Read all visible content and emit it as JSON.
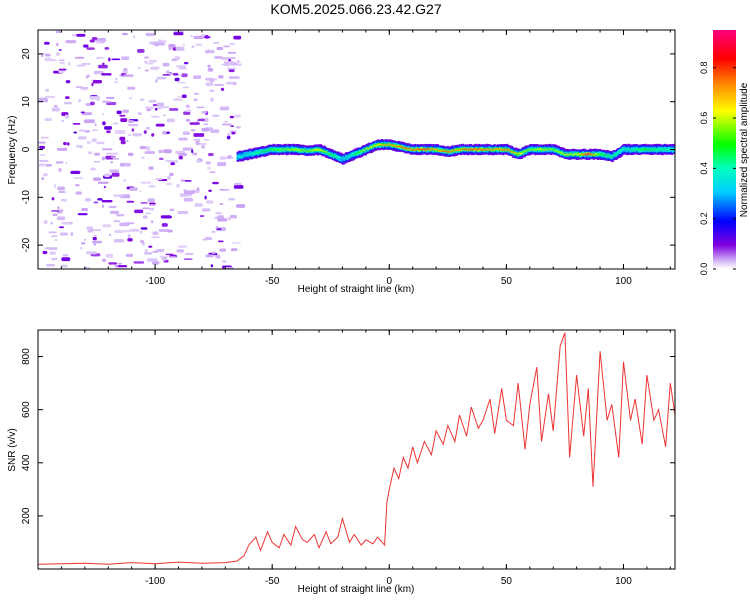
{
  "title": "KOM5.2025.066.23.42.G27",
  "chart_data": [
    {
      "type": "heatmap",
      "xlabel": "Height of straight line (km)",
      "ylabel": "Frequency (Hz)",
      "xlim": [
        -150,
        122
      ],
      "ylim": [
        -25,
        25
      ],
      "xticks": [
        -100,
        -50,
        0,
        50,
        100
      ],
      "yticks": [
        -20,
        -10,
        0,
        10,
        20
      ],
      "colorbar": {
        "label": "Normalized spectral amplitude",
        "range": [
          0,
          0.95
        ],
        "ticks": [
          0.0,
          0.2,
          0.4,
          0.6,
          0.8
        ],
        "colors": [
          "#ffffff",
          "#c9a8f0",
          "#7a00e0",
          "#0000ff",
          "#00e0ff",
          "#00ff40",
          "#ffff00",
          "#ff8000",
          "#ff0000",
          "#ff0080"
        ]
      },
      "noise_region_x": [
        -150,
        -65
      ],
      "signal_trace": {
        "x": [
          -65,
          -60,
          -55,
          -50,
          -45,
          -40,
          -35,
          -30,
          -25,
          -20,
          -15,
          -10,
          -5,
          0,
          5,
          10,
          15,
          20,
          25,
          30,
          35,
          40,
          45,
          50,
          55,
          60,
          65,
          70,
          75,
          80,
          85,
          90,
          95,
          100,
          105,
          110,
          115,
          122
        ],
        "frequency": [
          -1.5,
          -1,
          -0.5,
          0,
          0,
          0,
          -0.3,
          0,
          -1,
          -2,
          -1,
          0,
          1,
          1,
          0.5,
          0,
          0,
          0,
          -0.5,
          0,
          0,
          0,
          0,
          0,
          -1,
          0,
          0,
          0,
          -1,
          -1,
          -1,
          -1,
          -1.5,
          0,
          0,
          0,
          0,
          0
        ],
        "amplitude": [
          0.35,
          0.4,
          0.45,
          0.5,
          0.55,
          0.6,
          0.55,
          0.65,
          0.5,
          0.35,
          0.45,
          0.6,
          0.65,
          0.7,
          0.75,
          0.75,
          0.8,
          0.7,
          0.75,
          0.7,
          0.8,
          0.75,
          0.7,
          0.75,
          0.65,
          0.55,
          0.6,
          0.55,
          0.6,
          0.6,
          0.85,
          0.5,
          0.45,
          0.4,
          0.45,
          0.5,
          0.45,
          0.4
        ]
      }
    },
    {
      "type": "line",
      "xlabel": "Height of straight line (km)",
      "ylabel": "SNR (v/v)",
      "xlim": [
        -150,
        122
      ],
      "ylim": [
        0,
        900
      ],
      "xticks": [
        -100,
        -50,
        0,
        50,
        100
      ],
      "yticks": [
        200,
        400,
        600,
        800
      ],
      "color": "#ee3333",
      "series": [
        {
          "x": [
            -150,
            -140,
            -130,
            -120,
            -110,
            -100,
            -90,
            -80,
            -70,
            -65,
            -62,
            -60,
            -57,
            -55,
            -52,
            -50,
            -47,
            -45,
            -42,
            -40,
            -37,
            -35,
            -32,
            -30,
            -27,
            -25,
            -22,
            -20,
            -17,
            -15,
            -12,
            -10,
            -7,
            -5,
            -3,
            -2,
            -1,
            0,
            2,
            4,
            6,
            8,
            10,
            12,
            15,
            18,
            20,
            23,
            25,
            28,
            30,
            33,
            35,
            38,
            40,
            43,
            45,
            48,
            50,
            53,
            55,
            58,
            60,
            63,
            65,
            68,
            70,
            73,
            75,
            77,
            80,
            83,
            85,
            87,
            90,
            93,
            95,
            98,
            100,
            103,
            105,
            108,
            110,
            113,
            115,
            118,
            120,
            122
          ],
          "y": [
            18,
            20,
            22,
            18,
            24,
            20,
            26,
            22,
            24,
            30,
            50,
            90,
            120,
            70,
            140,
            100,
            80,
            130,
            90,
            160,
            110,
            100,
            130,
            80,
            140,
            95,
            120,
            190,
            100,
            130,
            90,
            110,
            95,
            120,
            100,
            90,
            250,
            300,
            380,
            340,
            420,
            380,
            460,
            400,
            480,
            430,
            520,
            470,
            540,
            480,
            580,
            500,
            610,
            530,
            560,
            640,
            510,
            680,
            560,
            540,
            700,
            450,
            620,
            760,
            480,
            660,
            520,
            840,
            890,
            420,
            730,
            500,
            680,
            310,
            820,
            560,
            620,
            420,
            780,
            560,
            640,
            470,
            730,
            560,
            600,
            460,
            700,
            580
          ]
        }
      ]
    }
  ]
}
